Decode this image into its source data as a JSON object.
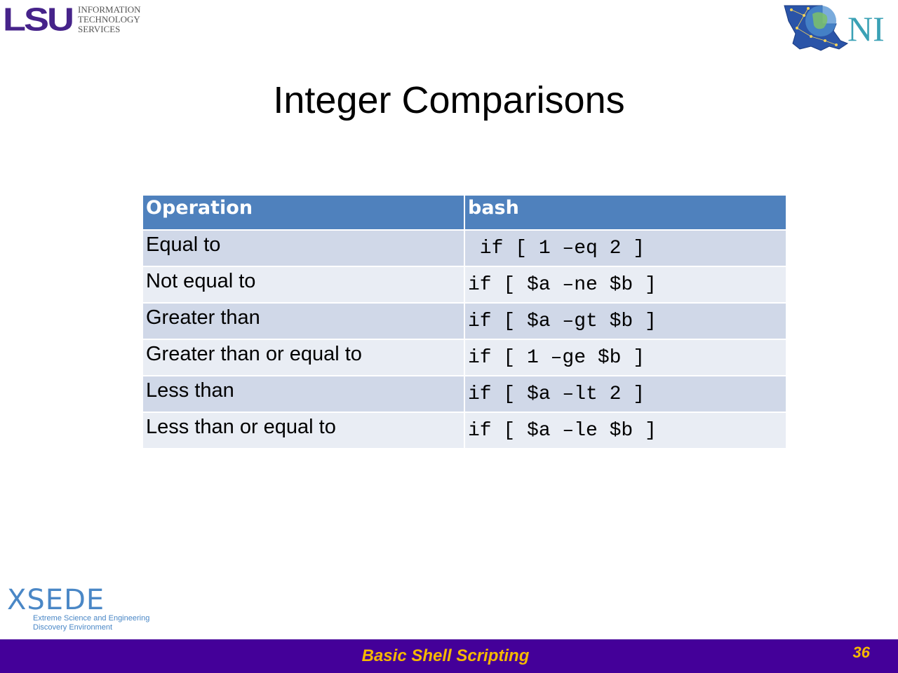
{
  "header": {
    "lsu_logo": "LSU",
    "lsu_subtitle": [
      "INFORMATION",
      "TECHNOLOGY",
      "SERVICES"
    ],
    "loni_logo": "NI"
  },
  "slide": {
    "title": "Integer Comparisons"
  },
  "table": {
    "headers": [
      "Operation",
      "bash"
    ],
    "rows": [
      {
        "operation": "Equal to",
        "bash": " if [ 1 –eq 2 ]"
      },
      {
        "operation": "Not equal to",
        "bash": "if [ $a –ne $b ]"
      },
      {
        "operation": "Greater than",
        "bash": "if [ $a –gt $b ]"
      },
      {
        "operation": "Greater than or equal to",
        "bash": "if [ 1 –ge $b ]"
      },
      {
        "operation": "Less than",
        "bash": "if [ $a –lt 2 ]"
      },
      {
        "operation": "Less than or equal to",
        "bash": "if [ $a –le $b ]"
      }
    ]
  },
  "xsede": {
    "logo": "XSEDE",
    "line1": "Extreme Science and Engineering",
    "line2": "Discovery Environment"
  },
  "footer": {
    "title": "Basic Shell Scripting",
    "page": "36"
  },
  "colors": {
    "footer_bg": "#440099",
    "footer_text": "#f5b800",
    "header_row": "#4f81bd",
    "row_dark": "#d0d8e8",
    "row_light": "#e9edf4",
    "lsu_purple": "#46238a"
  }
}
